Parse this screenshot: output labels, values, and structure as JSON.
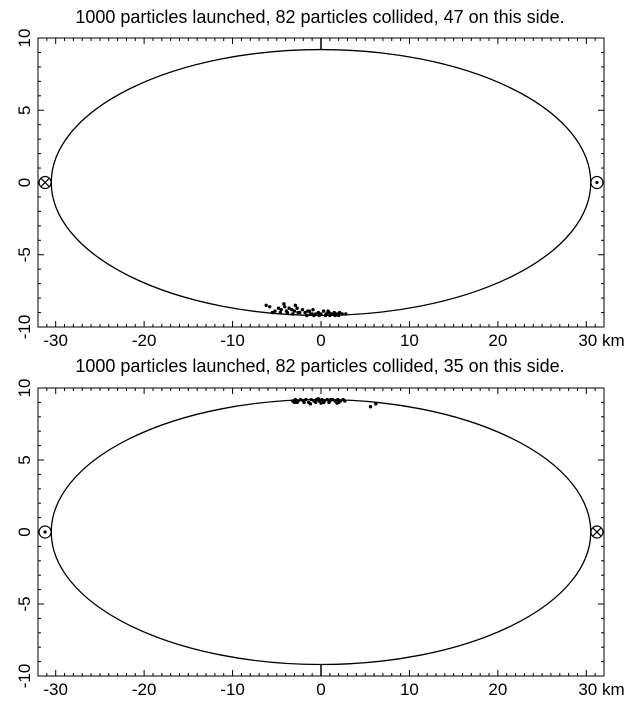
{
  "chart_data": [
    {
      "type": "scatter",
      "title": "1000 particles launched, 82 particles collided, 47 on this side.",
      "xlim": [
        -32,
        32
      ],
      "ylim": [
        -10,
        10
      ],
      "x_ticks": [
        -30,
        -20,
        -10,
        0,
        10,
        20,
        30
      ],
      "x_tick_labels": [
        "-30",
        "-20",
        "-10",
        "0",
        "10",
        "20",
        "30 km"
      ],
      "y_ticks": [
        -10,
        -5,
        0,
        5,
        10
      ],
      "y_tick_labels": [
        "-10",
        "-5",
        "0",
        "5",
        "10"
      ],
      "ellipse": {
        "semi_major_x": 30.5,
        "semi_minor_y": 9.2
      },
      "markers": [
        {
          "symbol": "circle-cross",
          "x": -31.2,
          "y": 0
        },
        {
          "symbol": "circle-dot",
          "x": 31.2,
          "y": 0
        }
      ],
      "center_mark": "top",
      "points": [
        [
          -5.8,
          -8.6
        ],
        [
          -5.2,
          -8.9
        ],
        [
          -4.8,
          -8.7
        ],
        [
          -4.5,
          -8.8
        ],
        [
          -4.1,
          -8.6
        ],
        [
          -3.9,
          -8.9
        ],
        [
          -3.6,
          -8.7
        ],
        [
          -3.3,
          -8.8
        ],
        [
          -3.0,
          -8.9
        ],
        [
          -2.7,
          -8.7
        ],
        [
          -2.4,
          -9.0
        ],
        [
          -2.1,
          -8.8
        ],
        [
          -1.8,
          -9.0
        ],
        [
          -1.5,
          -8.9
        ],
        [
          -1.2,
          -9.1
        ],
        [
          -0.9,
          -8.8
        ],
        [
          -0.6,
          -9.1
        ],
        [
          -0.3,
          -9.0
        ],
        [
          0.0,
          -9.1
        ],
        [
          0.3,
          -8.9
        ],
        [
          0.6,
          -9.1
        ],
        [
          0.9,
          -9.0
        ],
        [
          1.2,
          -9.1
        ],
        [
          1.5,
          -9.0
        ],
        [
          1.8,
          -9.1
        ],
        [
          2.1,
          -9.0
        ],
        [
          2.4,
          -9.1
        ],
        [
          -4.6,
          -9.0
        ],
        [
          -3.2,
          -9.1
        ],
        [
          -1.0,
          -9.1
        ],
        [
          0.5,
          -9.2
        ],
        [
          1.6,
          -9.2
        ],
        [
          -2.6,
          -9.0
        ],
        [
          -5.5,
          -9.0
        ],
        [
          -0.2,
          -9.2
        ],
        [
          1.0,
          -9.2
        ],
        [
          2.0,
          -9.2
        ],
        [
          -1.6,
          -9.2
        ],
        [
          -3.8,
          -9.0
        ],
        [
          2.8,
          -9.1
        ],
        [
          -6.2,
          -8.5
        ],
        [
          -4.2,
          -8.4
        ],
        [
          -2.9,
          -8.5
        ],
        [
          -1.3,
          -8.9
        ],
        [
          0.8,
          -8.9
        ],
        [
          1.4,
          -9.1
        ],
        [
          -0.8,
          -9.2
        ]
      ]
    },
    {
      "type": "scatter",
      "title": "1000 particles launched, 82 particles collided, 35 on this side.",
      "xlim": [
        -32,
        32
      ],
      "ylim": [
        -10,
        10
      ],
      "x_ticks": [
        -30,
        -20,
        -10,
        0,
        10,
        20,
        30
      ],
      "x_tick_labels": [
        "-30",
        "-20",
        "-10",
        "0",
        "10",
        "20",
        "30 km"
      ],
      "y_ticks": [
        -10,
        -5,
        0,
        5,
        10
      ],
      "y_tick_labels": [
        "-10",
        "-5",
        "0",
        "5",
        "10"
      ],
      "ellipse": {
        "semi_major_x": 30.5,
        "semi_minor_y": 9.2
      },
      "markers": [
        {
          "symbol": "circle-dot",
          "x": -31.2,
          "y": 0
        },
        {
          "symbol": "circle-cross",
          "x": 31.2,
          "y": 0
        }
      ],
      "center_mark": "bottom",
      "points": [
        [
          -3.2,
          9.1
        ],
        [
          -2.9,
          9.2
        ],
        [
          -2.6,
          9.1
        ],
        [
          -2.3,
          9.2
        ],
        [
          -2.0,
          9.1
        ],
        [
          -1.7,
          9.2
        ],
        [
          -1.4,
          9.0
        ],
        [
          -1.1,
          9.2
        ],
        [
          -0.8,
          9.1
        ],
        [
          -0.5,
          9.2
        ],
        [
          -0.2,
          9.1
        ],
        [
          0.1,
          9.2
        ],
        [
          0.4,
          9.1
        ],
        [
          0.7,
          9.2
        ],
        [
          1.0,
          9.1
        ],
        [
          1.3,
          9.2
        ],
        [
          1.6,
          9.1
        ],
        [
          1.9,
          9.2
        ],
        [
          2.2,
          9.1
        ],
        [
          2.5,
          9.2
        ],
        [
          -2.7,
          9.0
        ],
        [
          -1.2,
          8.9
        ],
        [
          0.0,
          8.95
        ],
        [
          0.9,
          9.0
        ],
        [
          1.8,
          8.95
        ],
        [
          -0.6,
          9.0
        ],
        [
          2.0,
          9.0
        ],
        [
          -3.0,
          9.0
        ],
        [
          0.3,
          9.0
        ],
        [
          -1.9,
          9.0
        ],
        [
          5.6,
          8.7
        ],
        [
          6.2,
          8.9
        ],
        [
          1.1,
          9.2
        ],
        [
          -0.3,
          9.25
        ],
        [
          2.7,
          9.1
        ]
      ]
    }
  ]
}
